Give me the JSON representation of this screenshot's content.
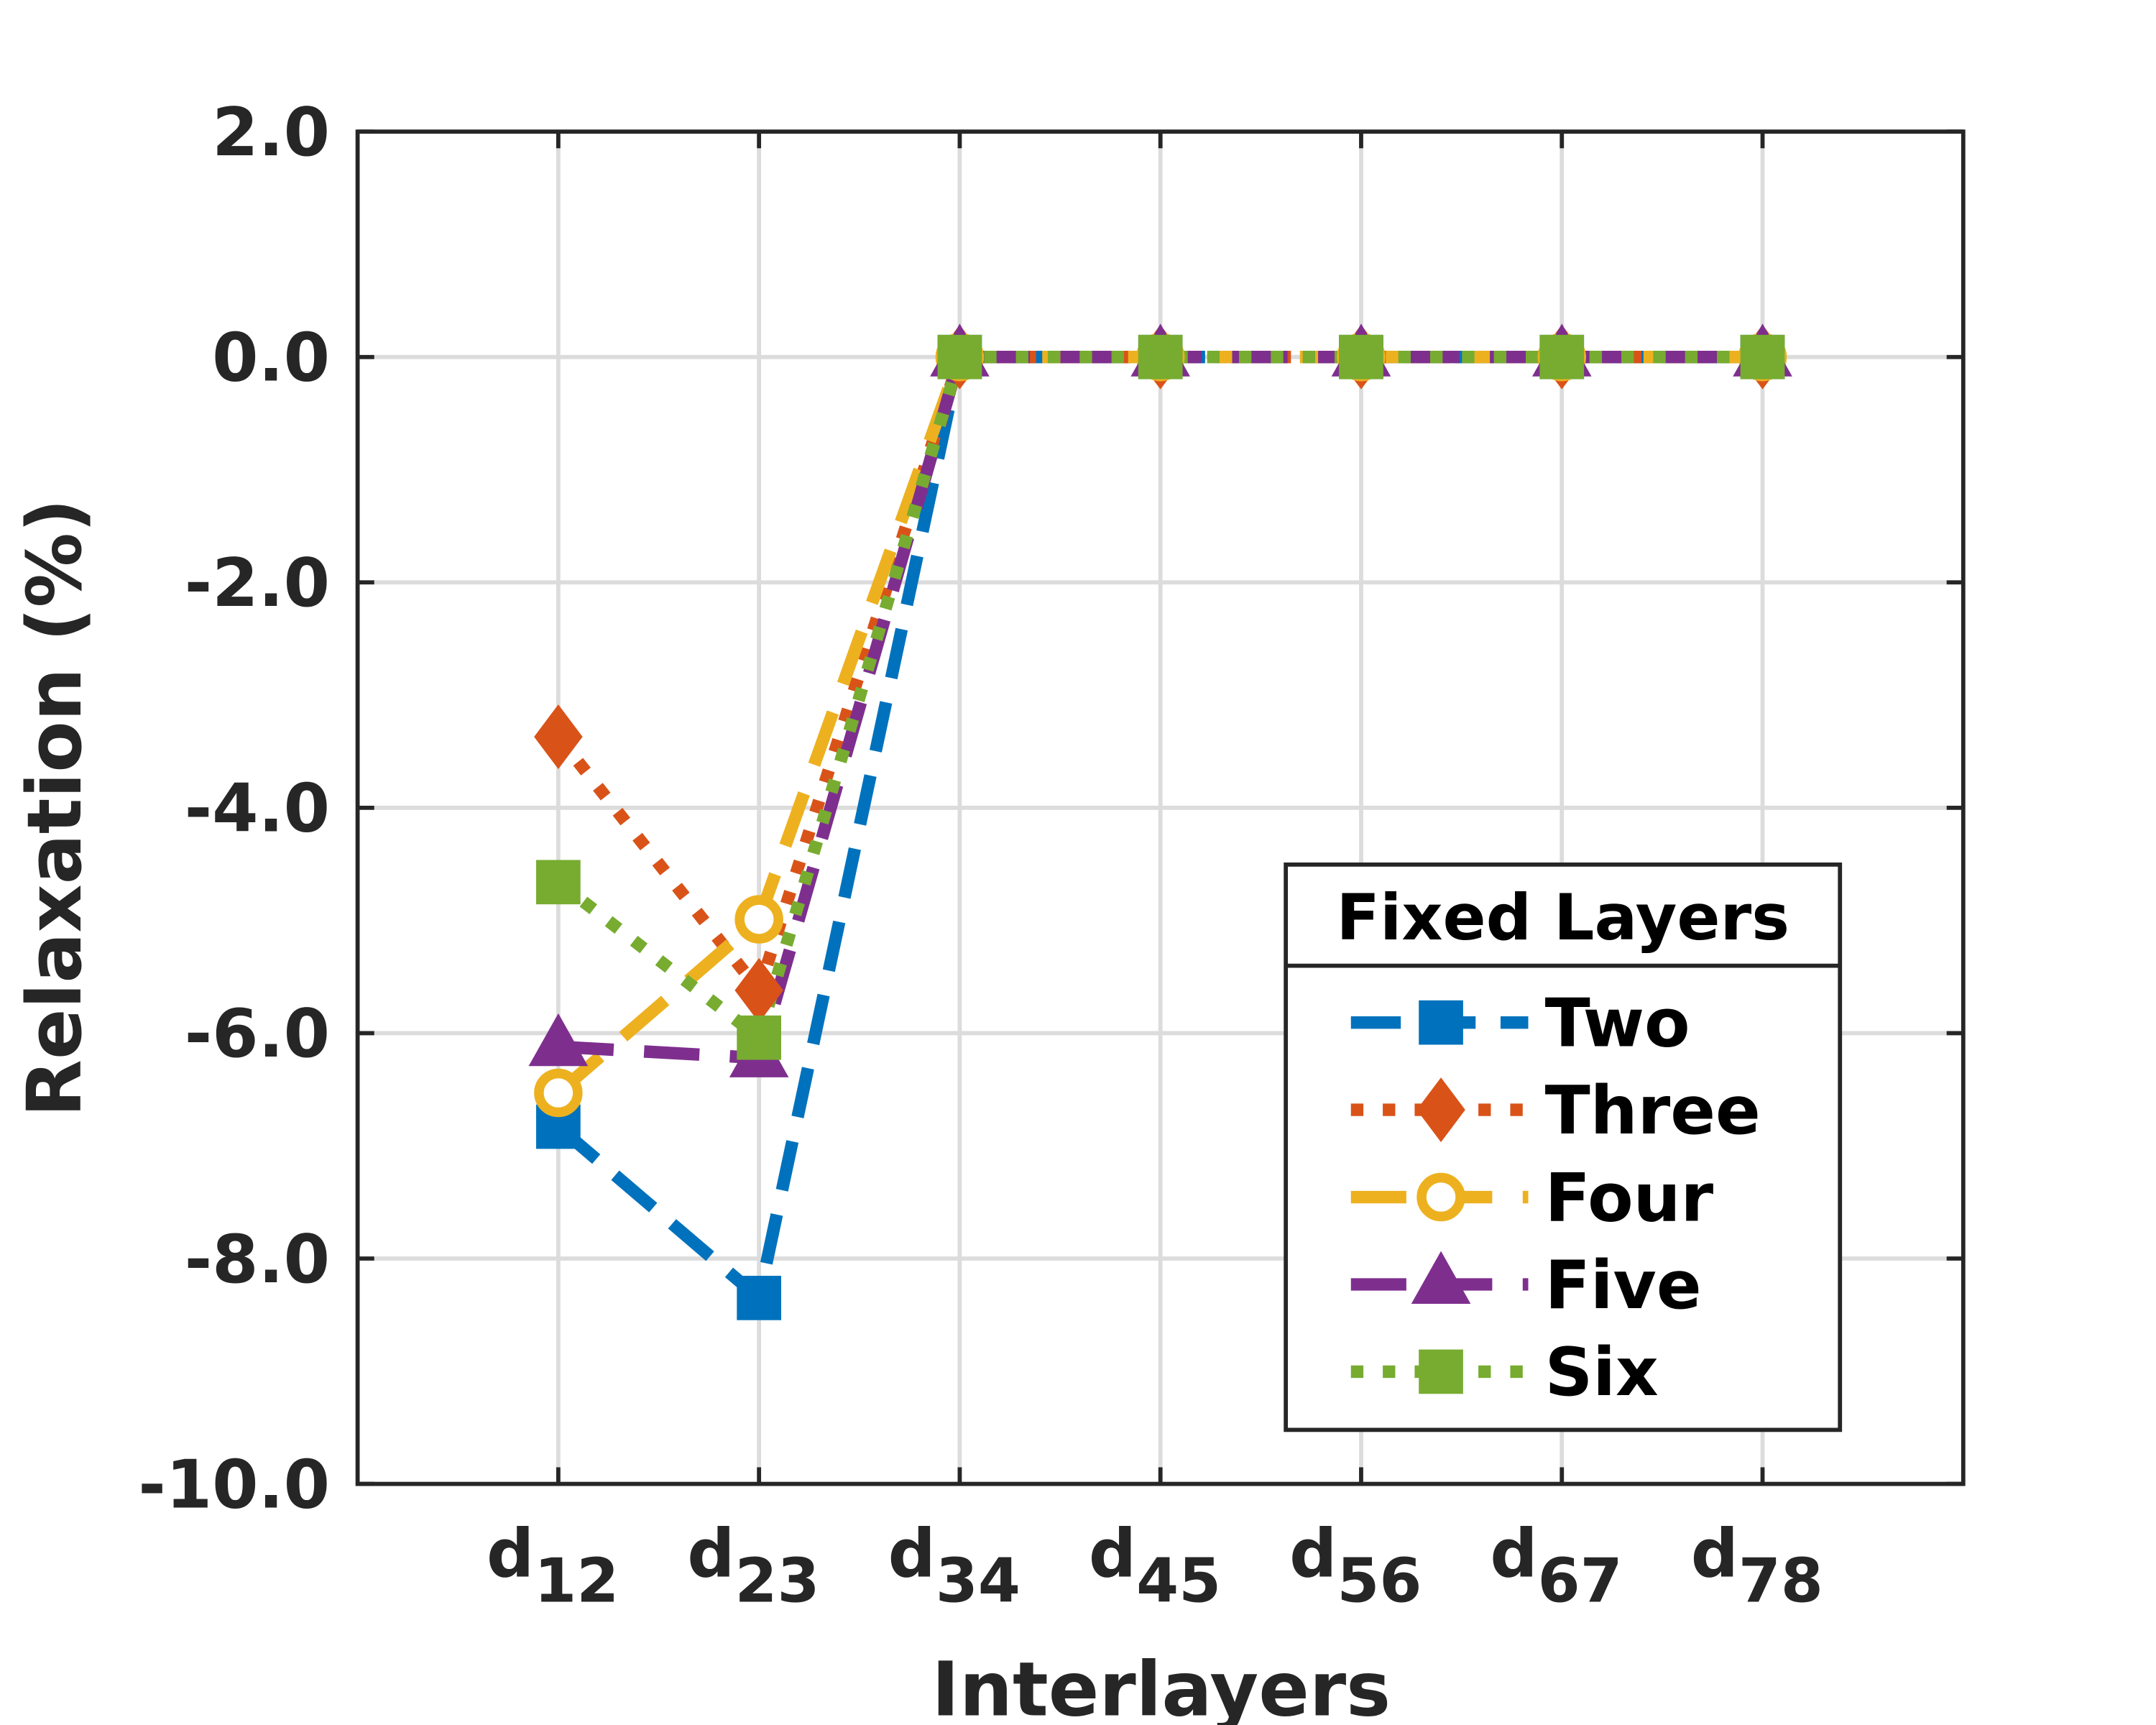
{
  "chart_data": {
    "type": "line",
    "xlabel": "Interlayers",
    "ylabel": "Relaxation (%)",
    "categories": [
      "d12",
      "d23",
      "d34",
      "d45",
      "d56",
      "d67",
      "d78"
    ],
    "ylim": [
      -10,
      2
    ],
    "yticks": [
      {
        "value": -10,
        "label": "-10.0"
      },
      {
        "value": -8,
        "label": "-8.0"
      },
      {
        "value": -6,
        "label": "-6.0"
      },
      {
        "value": -4,
        "label": "-4.0"
      },
      {
        "value": -2,
        "label": "-2.0"
      },
      {
        "value": 0,
        "label": "0.0"
      },
      {
        "value": 2,
        "label": "2.0"
      }
    ],
    "grid": true,
    "legend_title": "Fixed Layers",
    "legend_position": "lower right",
    "series": [
      {
        "name": "Two",
        "color": "#0072BD",
        "linestyle": "dashed",
        "marker": "square",
        "values": [
          -6.83,
          -8.35,
          0,
          0,
          0,
          0,
          0
        ]
      },
      {
        "name": "Three",
        "color": "#D95319",
        "linestyle": "dotted",
        "marker": "diamond",
        "values": [
          -3.37,
          -5.62,
          0,
          0,
          0,
          0,
          0
        ]
      },
      {
        "name": "Four",
        "color": "#EDB120",
        "linestyle": "longdash",
        "marker": "circle",
        "values": [
          -6.53,
          -4.99,
          0,
          0,
          0,
          0,
          0
        ]
      },
      {
        "name": "Five",
        "color": "#7E2F8E",
        "linestyle": "longdash",
        "marker": "triangle",
        "values": [
          -6.12,
          -6.22,
          0,
          0,
          0,
          0,
          0
        ]
      },
      {
        "name": "Six",
        "color": "#77AC30",
        "linestyle": "dotted",
        "marker": "square",
        "values": [
          -4.66,
          -6.04,
          0,
          0,
          0,
          0,
          0
        ]
      }
    ]
  }
}
